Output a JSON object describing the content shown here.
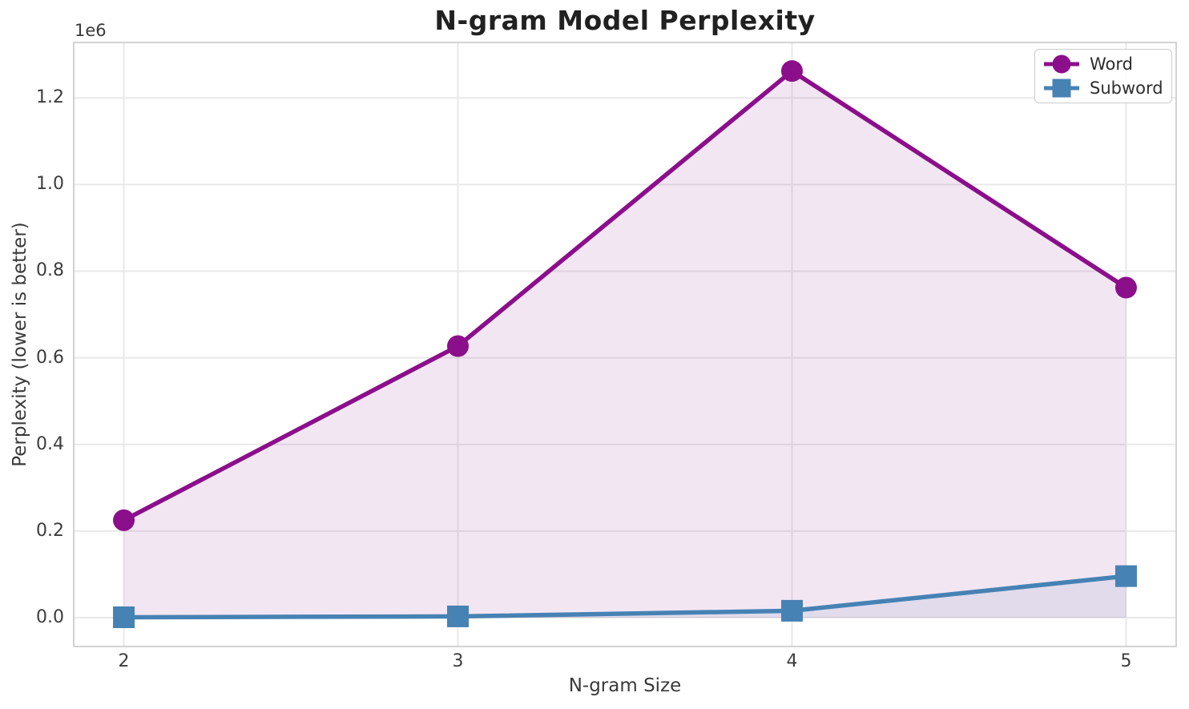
{
  "figure": {
    "title": "N-gram Model Perplexity",
    "xlabel": "N-gram Size",
    "ylabel": "Perplexity (lower is better)",
    "offset_text": "1e6"
  },
  "chart_data": {
    "type": "line",
    "title": "N-gram Model Perplexity",
    "xlabel": "N-gram Size",
    "ylabel": "Perplexity (lower is better)",
    "x": [
      2,
      3,
      4,
      5
    ],
    "series": [
      {
        "name": "Word",
        "values": [
          225000,
          627000,
          1262000,
          762000
        ],
        "color": "#8b0e8b",
        "marker": "circle",
        "fill_to_zero": true,
        "fill_alpha": 0.1
      },
      {
        "name": "Subword",
        "values": [
          1000,
          3000,
          16000,
          96000
        ],
        "color": "#4682b4",
        "marker": "square",
        "fill_to_zero": true,
        "fill_alpha": 0.1
      }
    ],
    "xticks": {
      "values": [
        2,
        3,
        4,
        5
      ],
      "labels": [
        "2",
        "3",
        "4",
        "5"
      ]
    },
    "yticks": {
      "values": [
        0,
        200000,
        400000,
        600000,
        800000,
        1000000,
        1200000
      ],
      "labels": [
        "0.0",
        "0.2",
        "0.4",
        "0.6",
        "0.8",
        "1.0",
        "1.2"
      ]
    },
    "y_offset_label": "1e6",
    "xlim": [
      1.85,
      5.15
    ],
    "ylim": [
      -66500,
      1328000
    ],
    "grid": true,
    "legend": {
      "position": "upper right",
      "entries": [
        "Word",
        "Subword"
      ]
    }
  },
  "colors": {
    "background": "#ffffff",
    "grid": "#e9e9e9",
    "spine": "#c8c8c8",
    "tick_text": "#3d3d3d",
    "title_text": "#212121"
  }
}
